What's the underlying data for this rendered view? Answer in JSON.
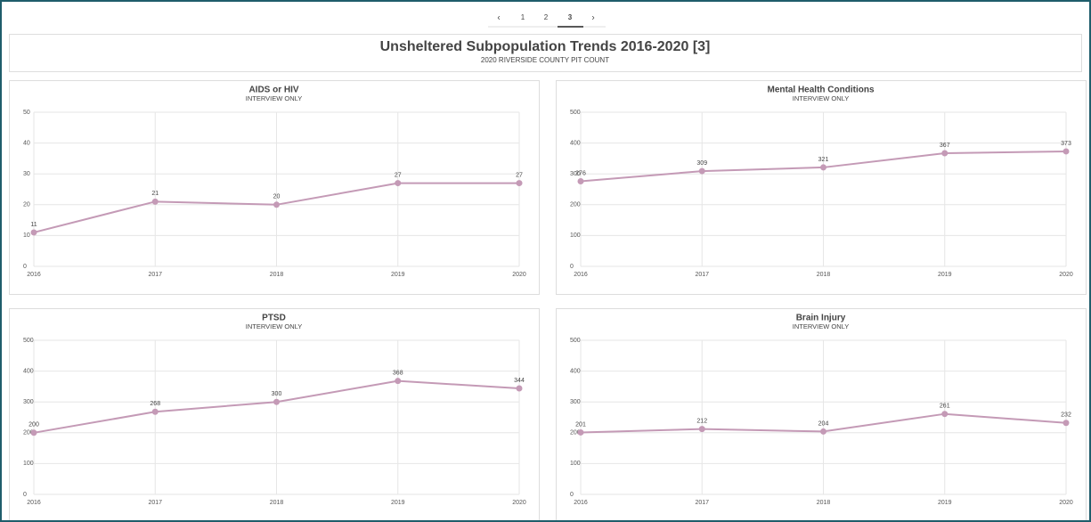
{
  "pagination": {
    "prev": "‹",
    "pages": [
      "1",
      "2",
      "3"
    ],
    "next": "›"
  },
  "header": {
    "title": "Unsheltered Subpopulation Trends 2016-2020 [3]",
    "subtitle": "2020 RIVERSIDE COUNTY PIT COUNT"
  },
  "chart_data": [
    {
      "type": "line",
      "title": "AIDS or HIV",
      "subtitle": "INTERVIEW ONLY",
      "x": [
        2016,
        2017,
        2018,
        2019,
        2020
      ],
      "xlim": [
        2016,
        2020
      ],
      "xticks": [
        2016,
        2017,
        2018,
        2019,
        2020
      ],
      "series": [
        {
          "name": "AIDS or HIV",
          "color": "#c49ab6",
          "values": [
            11,
            21,
            20,
            27,
            27
          ]
        }
      ],
      "ylim": [
        0,
        50
      ],
      "yticks": [
        0,
        10,
        20,
        30,
        40,
        50
      ],
      "grid": true
    },
    {
      "type": "line",
      "title": "Mental Health Conditions",
      "subtitle": "INTERVIEW ONLY",
      "x": [
        2016,
        2017,
        2018,
        2019,
        2020
      ],
      "xlim": [
        2016,
        2020
      ],
      "xticks": [
        2016,
        2017,
        2018,
        2019,
        2020
      ],
      "series": [
        {
          "name": "Mental Health Conditions",
          "color": "#c49ab6",
          "values": [
            276,
            309,
            321,
            367,
            373
          ]
        }
      ],
      "ylim": [
        0,
        500
      ],
      "yticks": [
        0,
        100,
        200,
        300,
        400,
        500
      ],
      "grid": true
    },
    {
      "type": "line",
      "title": "PTSD",
      "subtitle": "INTERVIEW ONLY",
      "x": [
        2016,
        2017,
        2018,
        2019,
        2020
      ],
      "xlim": [
        2016,
        2020
      ],
      "xticks": [
        2016,
        2017,
        2018,
        2019,
        2020
      ],
      "series": [
        {
          "name": "PTSD",
          "color": "#c49ab6",
          "values": [
            200,
            268,
            300,
            368,
            344
          ]
        }
      ],
      "ylim": [
        0,
        500
      ],
      "yticks": [
        0,
        100,
        200,
        300,
        400,
        500
      ],
      "grid": true
    },
    {
      "type": "line",
      "title": "Brain Injury",
      "subtitle": "INTERVIEW ONLY",
      "x": [
        2016,
        2017,
        2018,
        2019,
        2020
      ],
      "xlim": [
        2016,
        2020
      ],
      "xticks": [
        2016,
        2017,
        2018,
        2019,
        2020
      ],
      "series": [
        {
          "name": "Brain Injury",
          "color": "#c49ab6",
          "values": [
            201,
            212,
            204,
            261,
            232
          ]
        }
      ],
      "ylim": [
        0,
        500
      ],
      "yticks": [
        0,
        100,
        200,
        300,
        400,
        500
      ],
      "grid": true
    }
  ]
}
